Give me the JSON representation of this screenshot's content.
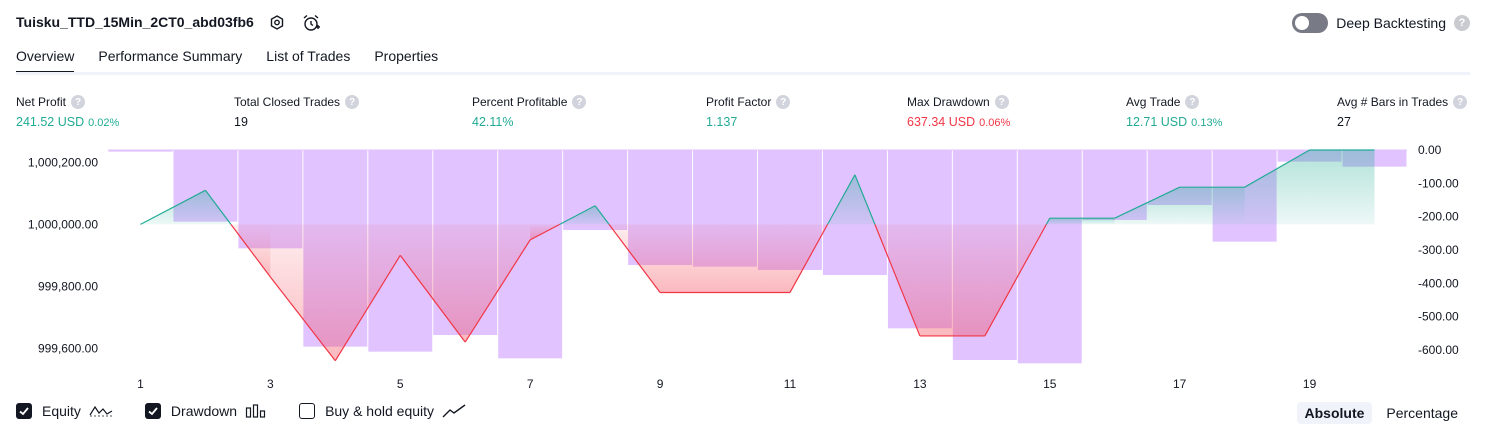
{
  "header": {
    "title": "Tuisku_TTD_15Min_2CT0_abd03fb6",
    "settings_icon": "gear-icon",
    "alert_icon": "alarm-clock-icon",
    "deep_backtesting_label": "Deep Backtesting",
    "deep_backtesting_on": false,
    "help_glyph": "?"
  },
  "tabs": [
    {
      "label": "Overview",
      "active": true
    },
    {
      "label": "Performance Summary",
      "active": false
    },
    {
      "label": "List of Trades",
      "active": false
    },
    {
      "label": "Properties",
      "active": false
    }
  ],
  "metrics": [
    {
      "label": "Net Profit",
      "value": "241.52 USD",
      "pct": "0.02%",
      "color": "#22ab94"
    },
    {
      "label": "Total Closed Trades",
      "value": "19",
      "pct": "",
      "color": "#131722"
    },
    {
      "label": "Percent Profitable",
      "value": "42.11%",
      "pct": "",
      "color": "#22ab94"
    },
    {
      "label": "Profit Factor",
      "value": "1.137",
      "pct": "",
      "color": "#22ab94"
    },
    {
      "label": "Max Drawdown",
      "value": "637.34 USD",
      "pct": "0.06%",
      "color": "#f23645"
    },
    {
      "label": "Avg Trade",
      "value": "12.71 USD",
      "pct": "0.13%",
      "color": "#22ab94"
    },
    {
      "label": "Avg # Bars in Trades",
      "value": "27",
      "pct": "",
      "color": "#131722"
    }
  ],
  "chart_data": {
    "type": "line",
    "x": [
      1,
      2,
      3,
      4,
      5,
      6,
      7,
      8,
      9,
      10,
      11,
      12,
      13,
      14,
      15,
      16,
      17,
      18,
      19,
      20
    ],
    "x_tick_labels": [
      "1",
      "3",
      "5",
      "7",
      "9",
      "11",
      "13",
      "15",
      "17",
      "19"
    ],
    "left_axis": {
      "ticks": [
        999600,
        999800,
        1000000,
        1000200
      ],
      "tick_labels": [
        "999,600.00",
        "999,800.00",
        "1,000,000.00",
        "1,000,200.00"
      ],
      "ylim": [
        999530,
        1000240
      ]
    },
    "right_axis": {
      "ticks": [
        0,
        -100,
        -200,
        -300,
        -400,
        -500,
        -600
      ],
      "tick_labels": [
        "0.00",
        "-100.00",
        "-200.00",
        "-300.00",
        "-400.00",
        "-500.00",
        "-600.00"
      ],
      "ylim": [
        -660,
        0
      ]
    },
    "baseline": 1000000,
    "series": [
      {
        "name": "Equity",
        "axis": "left",
        "color_up": "#22ab94",
        "color_down": "#f23645",
        "values": [
          1000000,
          1000110,
          999830,
          999560,
          999900,
          999620,
          999950,
          1000060,
          999780,
          999780,
          999780,
          1000160,
          999640,
          999640,
          1000020,
          1000020,
          1000120,
          1000120,
          1000240,
          1000240
        ]
      },
      {
        "name": "Drawdown",
        "axis": "right",
        "color": "#e1c4ff",
        "values": [
          -5,
          -215,
          -295,
          -590,
          -605,
          -555,
          -625,
          -240,
          -345,
          -350,
          -360,
          -375,
          -535,
          -630,
          -640,
          -210,
          -165,
          -275,
          -35,
          -50
        ]
      }
    ]
  },
  "legend": {
    "items": [
      {
        "label": "Equity",
        "checked": true,
        "icon": "equity-line-icon"
      },
      {
        "label": "Drawdown",
        "checked": true,
        "icon": "drawdown-bars-icon"
      },
      {
        "label": "Buy & hold equity",
        "checked": false,
        "icon": "buy-hold-line-icon"
      }
    ]
  },
  "mode_switch": {
    "options": [
      "Absolute",
      "Percentage"
    ],
    "selected": "Absolute"
  }
}
